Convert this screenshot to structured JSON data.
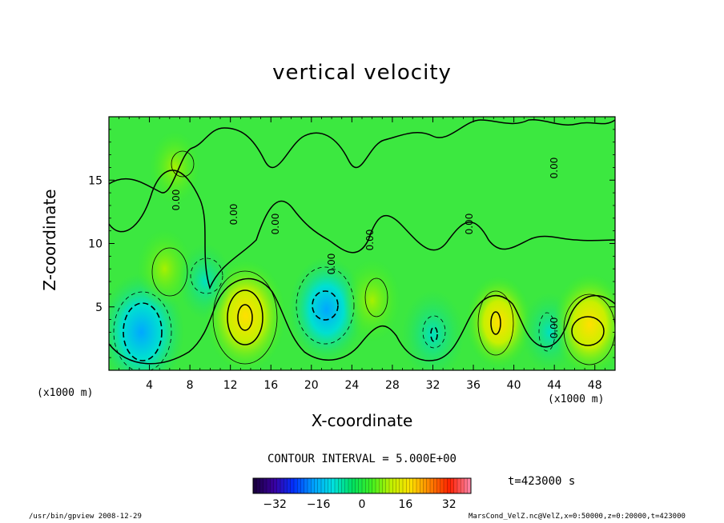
{
  "chart_data": {
    "type": "heatmap",
    "title": "vertical velocity",
    "xlabel": "X-coordinate",
    "ylabel": "Z-coordinate",
    "x_unit": "(x1000 m)",
    "y_unit": "(x1000 m)",
    "xlim": [
      0,
      50
    ],
    "ylim": [
      0,
      20
    ],
    "x_ticks": [
      4,
      8,
      12,
      16,
      20,
      24,
      28,
      32,
      36,
      40,
      44,
      48
    ],
    "y_ticks": [
      5,
      10,
      15
    ],
    "contour_interval_text": "CONTOUR INTERVAL = 5.000E+00",
    "contour_label": "0.00",
    "colorbar": {
      "min": -40,
      "max": 40,
      "ticks": [
        -32,
        -16,
        0,
        16,
        32
      ],
      "colors": [
        "#1a0040",
        "#3a00a0",
        "#0030ff",
        "#00a0ff",
        "#00e0e0",
        "#00e060",
        "#40f020",
        "#c0f000",
        "#ffe000",
        "#ff8000",
        "#ff2000",
        "#ff80a0"
      ]
    },
    "features": [
      {
        "x": 3.2,
        "z": 3.0,
        "value": -18,
        "sign": "negative"
      },
      {
        "x": 13.5,
        "z": 4.3,
        "value": 16,
        "sign": "positive"
      },
      {
        "x": 21.5,
        "z": 4.8,
        "value": -14,
        "sign": "negative"
      },
      {
        "x": 26.0,
        "z": 5.5,
        "value": 7,
        "sign": "positive"
      },
      {
        "x": 32.0,
        "z": 2.8,
        "value": -9,
        "sign": "negative"
      },
      {
        "x": 38.5,
        "z": 3.8,
        "value": 10,
        "sign": "positive"
      },
      {
        "x": 43.5,
        "z": 3.0,
        "value": -6,
        "sign": "negative"
      },
      {
        "x": 47.5,
        "z": 3.6,
        "value": 13,
        "sign": "positive"
      },
      {
        "x": 5.5,
        "z": 8.0,
        "value": 6,
        "sign": "positive"
      },
      {
        "x": 9.5,
        "z": 7.0,
        "value": -5,
        "sign": "negative"
      },
      {
        "x": 6.5,
        "z": 16.0,
        "value": 4,
        "sign": "positive"
      }
    ]
  },
  "time_text": "t=423000 s",
  "footer": {
    "left": "/usr/bin/gpview  2008-12-29",
    "right": "MarsCond_VelZ.nc@VelZ,x=0:50000,z=0:20000,t=423000"
  }
}
